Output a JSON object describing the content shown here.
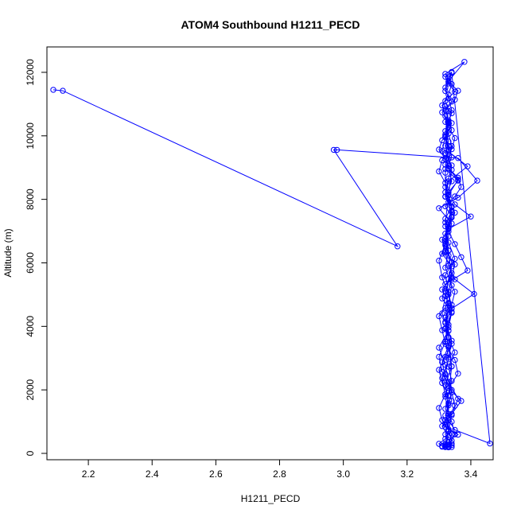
{
  "chart_data": {
    "type": "line",
    "title": "ATOM4 Southbound H1211_PECD",
    "xlabel": "H1211_PECD",
    "ylabel": "Altitude (m)",
    "xlim": [
      2.07,
      3.47
    ],
    "ylim": [
      -200,
      12800
    ],
    "x_ticks": [
      2.2,
      2.4,
      2.6,
      2.8,
      3.0,
      3.2,
      3.4
    ],
    "x_tick_labels": [
      "2.2",
      "2.4",
      "2.6",
      "2.8",
      "3.0",
      "3.2",
      "3.4"
    ],
    "y_ticks": [
      0,
      2000,
      4000,
      6000,
      8000,
      10000,
      12000
    ],
    "y_tick_labels": [
      "0",
      "2000",
      "4000",
      "6000",
      "8000",
      "10000",
      "12000"
    ],
    "grid": false,
    "legend": "none",
    "series": [
      {
        "color": "#0000ff",
        "x": [
          2.09,
          2.12,
          3.17,
          2.97,
          2.98,
          3.36,
          3.42,
          3.36,
          3.3,
          3.34,
          3.33,
          3.32,
          3.35,
          3.34,
          3.31,
          3.33,
          3.3,
          3.31,
          3.32,
          3.35,
          3.36,
          3.33,
          3.37,
          3.34,
          3.31,
          3.33,
          3.32,
          3.34,
          3.33,
          3.32,
          3.31,
          3.3,
          3.32,
          3.33,
          3.31,
          3.3,
          3.32,
          3.34,
          3.33,
          3.35,
          3.33,
          3.32,
          3.34,
          3.41,
          3.35,
          3.33,
          3.32,
          3.31,
          3.33,
          3.34,
          3.32,
          3.35,
          3.37,
          3.36,
          3.33,
          3.32,
          3.3,
          3.31,
          3.34,
          3.33,
          3.32,
          3.35,
          3.36,
          3.33,
          3.34,
          3.46,
          3.35,
          3.32,
          3.34,
          3.33,
          3.31,
          3.3,
          3.32,
          3.33,
          3.34,
          3.31,
          3.32,
          3.39,
          3.37,
          3.35,
          3.33,
          3.32,
          3.34,
          3.33,
          3.32,
          3.3,
          3.31,
          3.34,
          3.35,
          3.33,
          3.32,
          3.31,
          3.33,
          3.34,
          3.32,
          3.38,
          3.33,
          3.32,
          3.34,
          3.31,
          3.33,
          3.32,
          3.33,
          3.34,
          3.32,
          3.36,
          3.33,
          3.35,
          3.4,
          3.33,
          3.32,
          3.31,
          3.34,
          3.33,
          3.35,
          3.34,
          3.32,
          3.33,
          3.34,
          3.32,
          3.3,
          3.31,
          3.33,
          3.32,
          3.34,
          3.35,
          3.33,
          3.32,
          3.31,
          3.33,
          3.32,
          3.34,
          3.33,
          3.36,
          3.32,
          3.33,
          3.35,
          3.34,
          3.32,
          3.31,
          3.33,
          3.32,
          3.34,
          3.33,
          3.31,
          3.3,
          3.32,
          3.33,
          3.34,
          3.32,
          3.33,
          3.39,
          3.33,
          3.32,
          3.34,
          3.33,
          3.32,
          3.31,
          3.33,
          3.34,
          3.32,
          3.35,
          3.33,
          3.32,
          3.34,
          3.33,
          3.32,
          3.31,
          3.33,
          3.3,
          3.32,
          3.33,
          3.36,
          3.34,
          3.33,
          3.32,
          3.33,
          3.32,
          3.34,
          3.33,
          3.33,
          3.32,
          3.31,
          3.33,
          3.34,
          3.32,
          3.33,
          3.34,
          3.32,
          3.33,
          3.32,
          3.34,
          3.33,
          3.32,
          3.32,
          3.33,
          3.34,
          3.33,
          3.32,
          3.33,
          3.32,
          3.35,
          3.33,
          3.32,
          3.34,
          3.33,
          3.32,
          3.33,
          3.34,
          3.33,
          3.32,
          3.33,
          3.32,
          3.36,
          3.33,
          3.34,
          3.32,
          3.33,
          3.35,
          3.32,
          3.33,
          3.34,
          3.33,
          3.32,
          3.33,
          3.32,
          3.34,
          3.33,
          3.33,
          3.32,
          3.34,
          3.32,
          3.33,
          3.34,
          3.32,
          3.33,
          3.32,
          3.34,
          3.33,
          3.32,
          3.33,
          3.32,
          3.34,
          3.33,
          3.32,
          3.33,
          3.34,
          3.32,
          3.33,
          3.34,
          3.32,
          3.33,
          3.32,
          3.33,
          3.34,
          3.32,
          3.33,
          3.32,
          3.34,
          3.33,
          3.32,
          3.33,
          3.34,
          3.32,
          3.33,
          3.34,
          3.33,
          3.32
        ],
        "y": [
          11450,
          11420,
          6520,
          9560,
          9560,
          9300,
          8590,
          8050,
          7720,
          7240,
          6840,
          6370,
          5950,
          5550,
          5160,
          4740,
          4320,
          3880,
          3450,
          2940,
          2510,
          2060,
          1650,
          1240,
          860,
          520,
          260,
          200,
          190,
          210,
          230,
          300,
          460,
          720,
          1050,
          1430,
          1860,
          2280,
          2730,
          3180,
          3640,
          4100,
          4560,
          5020,
          5480,
          5910,
          6330,
          6730,
          7110,
          7450,
          7780,
          8090,
          8390,
          8680,
          8980,
          9270,
          9570,
          9860,
          10180,
          10490,
          10800,
          11140,
          11420,
          11700,
          11980,
          310,
          740,
          1200,
          1650,
          2120,
          2570,
          3040,
          3510,
          3970,
          4430,
          4880,
          5330,
          5760,
          6180,
          6590,
          6990,
          7390,
          7780,
          8150,
          8520,
          8880,
          9230,
          9580,
          9930,
          10280,
          10620,
          10960,
          11300,
          11630,
          11950,
          12330,
          11720,
          11410,
          11080,
          10740,
          10390,
          10040,
          9680,
          9320,
          8960,
          8590,
          8220,
          7840,
          7460,
          7070,
          6680,
          6290,
          5890,
          5490,
          5090,
          4680,
          4270,
          3860,
          3450,
          3040,
          2630,
          2220,
          1810,
          1400,
          1000,
          600,
          200,
          200,
          210,
          220,
          250,
          310,
          420,
          590,
          830,
          1130,
          1500,
          1920,
          2380,
          2870,
          3390,
          3920,
          4460,
          5000,
          5540,
          6070,
          6590,
          7100,
          7600,
          8090,
          8570,
          9040,
          9500,
          9950,
          10400,
          10430,
          9980,
          9520,
          9050,
          8570,
          8080,
          7580,
          7070,
          6550,
          6020,
          5490,
          4950,
          4410,
          3870,
          3330,
          2790,
          2250,
          1720,
          1200,
          700,
          300,
          200,
          220,
          400,
          760,
          1240,
          1790,
          2370,
          2960,
          3550,
          4140,
          4720,
          5290,
          5850,
          6390,
          6920,
          7430,
          7920,
          8390,
          8840,
          9270,
          9680,
          10070,
          10440,
          10780,
          11100,
          11390,
          11650,
          11860,
          12010,
          11810,
          11520,
          11180,
          10810,
          10410,
          9990,
          9550,
          9090,
          8620,
          8140,
          7650,
          7150,
          6640,
          6130,
          5610,
          5090,
          4570,
          4050,
          3530,
          3010,
          2500,
          2000,
          1510,
          1040,
          600,
          260,
          200,
          280,
          600,
          1050,
          1580,
          2150,
          2740,
          3340,
          3940,
          4530,
          5110,
          5680,
          6230,
          6760,
          7270,
          7760,
          8220,
          8660,
          9070,
          9460,
          9820,
          10150,
          10450,
          10710,
          10930,
          10380,
          9690,
          8930,
          8120,
          7270,
          6390,
          5490,
          4580,
          3660,
          2740,
          1830,
          920
        ]
      }
    ]
  }
}
